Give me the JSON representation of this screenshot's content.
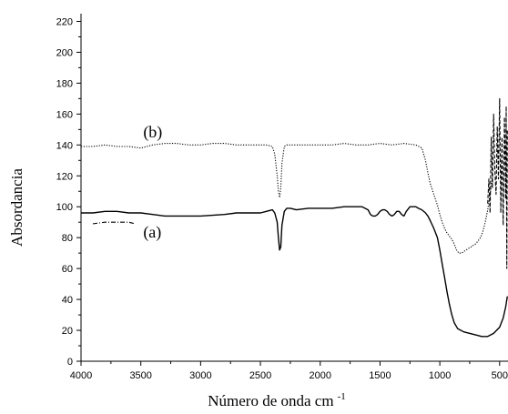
{
  "chart_data": {
    "type": "line",
    "title": "",
    "xlabel": "Número de onda cm",
    "xlabel_superscript": "-1",
    "ylabel": "Absordancia",
    "xlim": [
      4000,
      430
    ],
    "ylim": [
      0,
      225
    ],
    "x_reversed": true,
    "grid": false,
    "legend": "none",
    "x_ticks": [
      4000,
      3500,
      3000,
      2500,
      2000,
      1500,
      1000,
      500
    ],
    "y_ticks": [
      0,
      20,
      40,
      60,
      80,
      100,
      120,
      140,
      160,
      180,
      200,
      220
    ],
    "annotations": [
      {
        "text": "(b)",
        "x": 3480,
        "y": 145
      },
      {
        "text": "(a)",
        "x": 3480,
        "y": 80
      }
    ],
    "series": [
      {
        "id": "a",
        "style": "solid",
        "color": "#000000",
        "x": [
          4000,
          3900,
          3800,
          3700,
          3600,
          3500,
          3400,
          3300,
          3200,
          3000,
          2800,
          2700,
          2600,
          2500,
          2450,
          2400,
          2380,
          2360,
          2350,
          2340,
          2330,
          2320,
          2300,
          2280,
          2250,
          2200,
          2100,
          2000,
          1900,
          1800,
          1700,
          1650,
          1600,
          1580,
          1560,
          1540,
          1520,
          1500,
          1480,
          1460,
          1440,
          1420,
          1400,
          1380,
          1360,
          1340,
          1320,
          1300,
          1280,
          1250,
          1200,
          1180,
          1150,
          1120,
          1100,
          1080,
          1050,
          1020,
          1000,
          980,
          960,
          940,
          920,
          900,
          880,
          850,
          800,
          750,
          700,
          650,
          600,
          550,
          500,
          470,
          450,
          435
        ],
        "y": [
          96,
          96,
          97,
          97,
          96,
          96,
          95,
          94,
          94,
          94,
          95,
          96,
          96,
          96,
          97,
          98,
          96,
          90,
          80,
          72,
          74,
          88,
          97,
          99,
          99,
          98,
          99,
          99,
          99,
          100,
          100,
          100,
          98,
          95,
          94,
          94,
          95,
          97,
          98,
          98,
          97,
          95,
          94,
          95,
          97,
          97,
          95,
          94,
          97,
          100,
          100,
          99,
          98,
          96,
          94,
          91,
          86,
          80,
          72,
          63,
          54,
          45,
          37,
          30,
          25,
          21,
          19,
          18,
          17,
          16,
          16,
          18,
          22,
          28,
          35,
          42
        ]
      },
      {
        "id": "a-extra",
        "style": "dashdot",
        "color": "#000000",
        "x": [
          3900,
          3800,
          3700,
          3600,
          3550
        ],
        "y": [
          89,
          90,
          90,
          90,
          89
        ]
      },
      {
        "id": "b",
        "style": "dotted",
        "color": "#000000",
        "x": [
          4000,
          3900,
          3800,
          3700,
          3600,
          3500,
          3400,
          3300,
          3200,
          3100,
          3000,
          2900,
          2800,
          2700,
          2600,
          2500,
          2450,
          2400,
          2380,
          2360,
          2350,
          2340,
          2330,
          2320,
          2300,
          2280,
          2250,
          2200,
          2100,
          2000,
          1900,
          1800,
          1700,
          1600,
          1500,
          1400,
          1300,
          1200,
          1150,
          1120,
          1100,
          1080,
          1050,
          1020,
          1000,
          980,
          960,
          940,
          920,
          900,
          880,
          860,
          840,
          820,
          800,
          780,
          760,
          740,
          720,
          700,
          680,
          660,
          640,
          620,
          600,
          580,
          560
        ],
        "y": [
          139,
          139,
          140,
          139,
          139,
          138,
          140,
          141,
          141,
          140,
          140,
          141,
          141,
          140,
          140,
          140,
          140,
          139,
          134,
          120,
          110,
          106,
          112,
          128,
          139,
          140,
          140,
          140,
          140,
          140,
          140,
          141,
          140,
          140,
          141,
          140,
          141,
          140,
          138,
          130,
          122,
          115,
          108,
          101,
          95,
          90,
          86,
          83,
          81,
          79,
          76,
          72,
          70,
          70,
          71,
          72,
          73,
          74,
          75,
          76,
          78,
          80,
          84,
          90,
          98,
          108,
          118
        ]
      },
      {
        "id": "b-noise",
        "style": "dashed",
        "color": "#000000",
        "x": [
          600,
          590,
          580,
          570,
          560,
          550,
          540,
          530,
          520,
          510,
          500,
          490,
          480,
          470,
          460,
          450,
          445,
          440,
          435
        ],
        "y": [
          102,
          118,
          96,
          145,
          112,
          160,
          125,
          108,
          152,
          118,
          170,
          96,
          145,
          88,
          158,
          105,
          165,
          60,
          150
        ]
      }
    ]
  }
}
